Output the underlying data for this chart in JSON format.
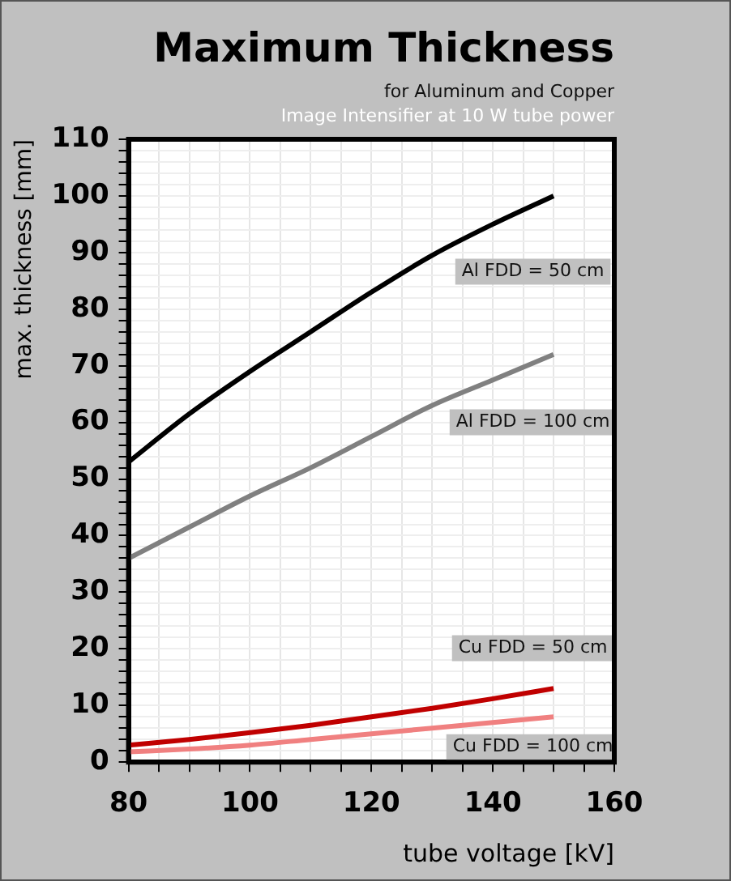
{
  "chart_data": {
    "type": "line",
    "title": "Maximum Thickness",
    "subtitle": "for Aluminum and Copper",
    "annotations": [
      "Image Intensifier at 10 W tube power"
    ],
    "xlabel": "tube voltage [kV]",
    "ylabel": "max. thickness [mm]",
    "x": [
      80,
      90,
      100,
      110,
      120,
      130,
      140,
      150
    ],
    "series": [
      {
        "name": "Al FDD = 50 cm",
        "color": "#000000",
        "values": [
          53,
          61.5,
          69,
          76,
          83,
          89.5,
          95,
          100
        ]
      },
      {
        "name": "Al FDD = 100 cm",
        "color": "#808080",
        "values": [
          36,
          41.5,
          47,
          52,
          57.5,
          63,
          67.5,
          72
        ]
      },
      {
        "name": "Cu FDD = 50 cm",
        "color": "#c00000",
        "values": [
          3,
          4,
          5.2,
          6.5,
          8,
          9.5,
          11.2,
          13
        ]
      },
      {
        "name": "Cu FDD = 100 cm",
        "color": "#f08080",
        "values": [
          1.8,
          2.3,
          3,
          4,
          5,
          6,
          7,
          8
        ]
      }
    ],
    "xlim": [
      80,
      160
    ],
    "xticks": [
      80,
      {
        "value": 85,
        "label": null
      },
      100,
      {
        "value": 90,
        "label": null
      },
      {
        "value": 95,
        "label": null
      },
      {
        "value": 105,
        "label": null
      },
      {
        "value": 110,
        "label": null
      },
      {
        "value": 115,
        "label": null
      },
      120,
      {
        "value": 125,
        "label": null
      },
      {
        "value": 130,
        "label": null
      },
      {
        "value": 135,
        "label": null
      },
      140,
      {
        "value": 145,
        "label": null
      },
      {
        "value": 150,
        "label": null
      },
      {
        "value": 155,
        "label": null
      },
      160
    ],
    "ylim": [
      0,
      110
    ],
    "yticks": [
      0,
      {
        "value": 2,
        "label": null
      },
      {
        "value": 4,
        "label": null
      },
      {
        "value": 6,
        "label": null
      },
      {
        "value": 8,
        "label": null
      },
      10,
      {
        "value": 12,
        "label": null
      },
      {
        "value": 14,
        "label": null
      },
      {
        "value": 16,
        "label": null
      },
      {
        "value": 18,
        "label": null
      },
      20,
      {
        "value": 22,
        "label": null
      },
      {
        "value": 24,
        "label": null
      },
      {
        "value": 26,
        "label": null
      },
      {
        "value": 28,
        "label": null
      },
      30,
      {
        "value": 32,
        "label": null
      },
      {
        "value": 34,
        "label": null
      },
      {
        "value": 36,
        "label": null
      },
      {
        "value": 38,
        "label": null
      },
      40,
      {
        "value": 42,
        "label": null
      },
      {
        "value": 44,
        "label": null
      },
      {
        "value": 46,
        "label": null
      },
      {
        "value": 48,
        "label": null
      },
      50,
      {
        "value": 52,
        "label": null
      },
      {
        "value": 54,
        "label": null
      },
      {
        "value": 56,
        "label": null
      },
      {
        "value": 58,
        "label": null
      },
      60,
      {
        "value": 62,
        "label": null
      },
      {
        "value": 64,
        "label": null
      },
      {
        "value": 66,
        "label": null
      },
      {
        "value": 68,
        "label": null
      },
      70,
      {
        "value": 72,
        "label": null
      },
      {
        "value": 74,
        "label": null
      },
      {
        "value": 76,
        "label": null
      },
      {
        "value": 78,
        "label": null
      },
      80,
      {
        "value": 82,
        "label": null
      },
      {
        "value": 84,
        "label": null
      },
      {
        "value": 86,
        "label": null
      },
      {
        "value": 88,
        "label": null
      },
      90,
      {
        "value": 92,
        "label": null
      },
      {
        "value": 94,
        "label": null
      },
      {
        "value": 96,
        "label": null
      },
      {
        "value": 98,
        "label": null
      },
      100,
      {
        "value": 102,
        "label": null
      },
      {
        "value": 104,
        "label": null
      },
      {
        "value": 106,
        "label": null
      },
      {
        "value": 108,
        "label": null
      },
      110
    ],
    "grid": true,
    "legend": false,
    "marker": "none",
    "line_style": "solid"
  }
}
